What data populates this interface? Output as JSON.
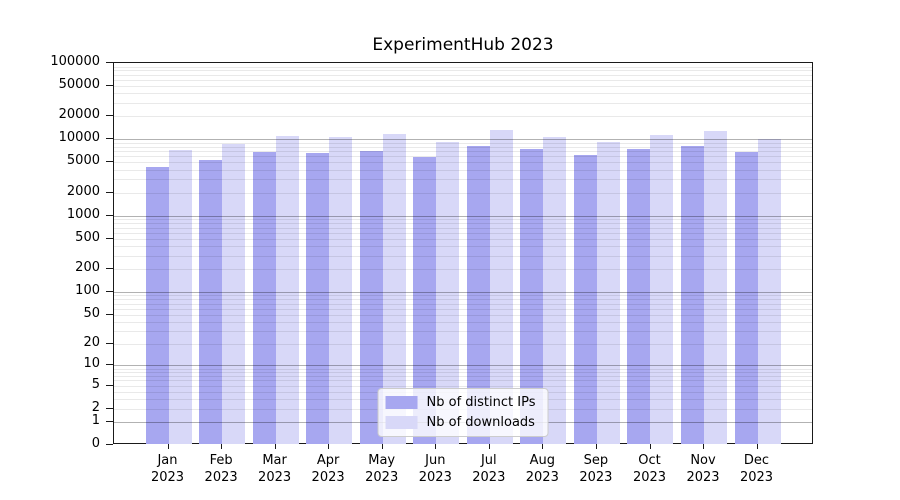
{
  "title": "ExperimentHub 2023",
  "chart_data": {
    "type": "bar",
    "title": "ExperimentHub 2023",
    "categories": [
      "Jan 2023",
      "Feb 2023",
      "Mar 2023",
      "Apr 2023",
      "May 2023",
      "Jun 2023",
      "Jul 2023",
      "Aug 2023",
      "Sep 2023",
      "Oct 2023",
      "Nov 2023",
      "Dec 2023"
    ],
    "series": [
      {
        "name": "Nb of distinct IPs",
        "color": "#a7a7f0",
        "values": [
          4300,
          5300,
          6800,
          6600,
          7100,
          5900,
          8200,
          7400,
          6200,
          7400,
          8300,
          6800
        ]
      },
      {
        "name": "Nb of downloads",
        "color": "#d8d8f8",
        "values": [
          7300,
          8700,
          11000,
          10700,
          11600,
          9300,
          13100,
          10700,
          9200,
          11400,
          12800,
          10100
        ]
      }
    ],
    "xlabel": "",
    "ylabel": "",
    "yscale": "log1p",
    "ylim": [
      0,
      100000
    ],
    "yticks": [
      100000,
      50000,
      20000,
      10000,
      5000,
      2000,
      1000,
      500,
      200,
      100,
      50,
      20,
      10,
      5,
      2,
      1,
      0
    ],
    "grid": true,
    "gridlines_above_bars": true,
    "legend_position": "lower center",
    "colors": {
      "distinct_ips_bar": "#a7a7f0",
      "downloads_bar": "#d8d8f8",
      "major_grid": "#b3b3b3",
      "minor_grid": "#e8e8e8",
      "spine": "#1a1a1a",
      "text": "#000000",
      "legend_bg": "#ffffff",
      "legend_border": "#cccccc"
    }
  }
}
